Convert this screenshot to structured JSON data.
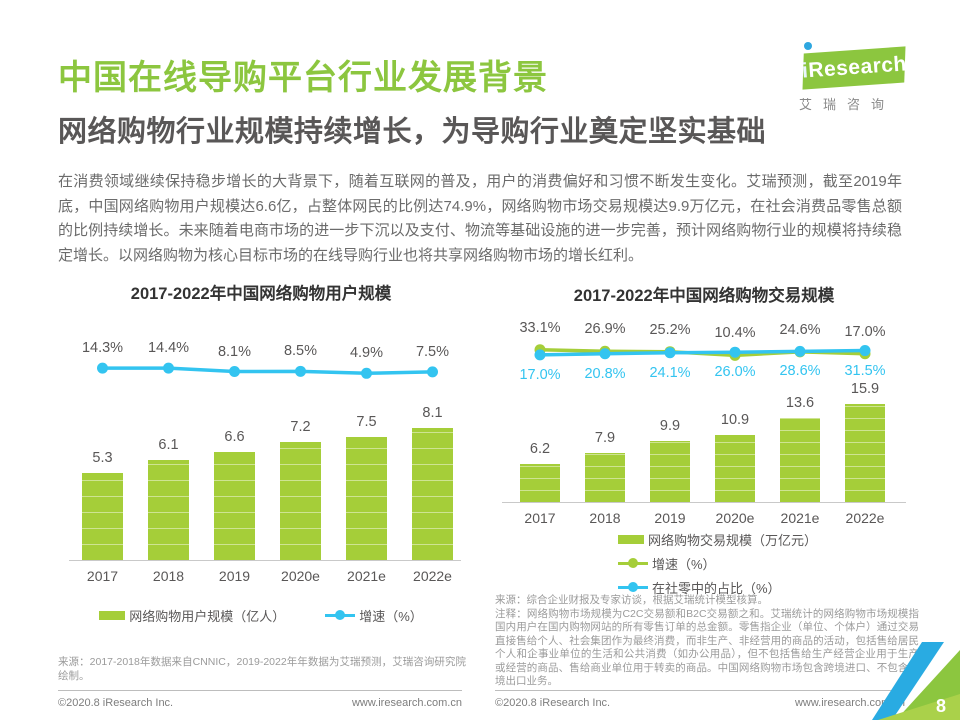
{
  "header": {
    "title": "中国在线导购平台行业发展背景",
    "subtitle": "网络购物行业规模持续增长，为导购行业奠定坚实基础",
    "logo_i": "i",
    "logo_brand": "Research",
    "logo_caption": "艾瑞咨询"
  },
  "intro": {
    "text": "在消费领域继续保持稳步增长的大背景下，随着互联网的普及，用户的消费偏好和习惯不断发生变化。艾瑞预测，截至2019年底，中国网络购物用户规模达6.6亿，占整体网民的比例达74.9%，网络购物市场交易规模达9.9万亿元，在社会消费品零售总额的比例持续增长。未来随着电商市场的进一步下沉以及支付、物流等基础设施的进一步完善，预计网络购物行业的规模将持续稳定增长。以网络购物为核心目标市场的在线导购行业也将共享网络购物市场的增长红利。"
  },
  "colors": {
    "title_green": "#8CC63F",
    "bar_green": "#A5CE39",
    "line_blue": "#33C4F0",
    "line_green": "#A5CE39",
    "label_gray": "#595757"
  },
  "chart_data": [
    {
      "type": "bar+line",
      "title": "2017-2022年中国网络购物用户规模",
      "categories": [
        "2017",
        "2018",
        "2019",
        "2020e",
        "2021e",
        "2022e"
      ],
      "series": [
        {
          "name": "网络购物用户规模（亿人）",
          "kind": "bar",
          "values": [
            5.3,
            6.1,
            6.6,
            7.2,
            7.5,
            8.1
          ],
          "labels": [
            "5.3",
            "6.1",
            "6.6",
            "7.2",
            "7.5",
            "8.1"
          ],
          "color": "#A5CE39"
        },
        {
          "name": "增速（%）",
          "kind": "line",
          "values": [
            14.3,
            14.4,
            8.1,
            8.5,
            4.9,
            7.5
          ],
          "labels": [
            "14.3%",
            "14.4%",
            "8.1%",
            "8.5%",
            "4.9%",
            "7.5%"
          ],
          "color": "#33C4F0"
        }
      ],
      "legend_position": "bottom-center",
      "grid": false,
      "source": "来源：2017-2018年数据来自CNNIC，2019-2022年年数据为艾瑞预测，艾瑞咨询研究院绘制。"
    },
    {
      "type": "bar+line",
      "title": "2017-2022年中国网络购物交易规模",
      "categories": [
        "2017",
        "2018",
        "2019",
        "2020e",
        "2021e",
        "2022e"
      ],
      "series": [
        {
          "name": "网络购物交易规模（万亿元）",
          "kind": "bar",
          "values": [
            6.2,
            7.9,
            9.9,
            10.9,
            13.6,
            15.9
          ],
          "labels": [
            "6.2",
            "7.9",
            "9.9",
            "10.9",
            "13.6",
            "15.9"
          ],
          "color": "#A5CE39"
        },
        {
          "name": "增速（%）",
          "kind": "line",
          "values": [
            33.1,
            26.9,
            25.2,
            10.4,
            24.6,
            17.0
          ],
          "labels": [
            "33.1%",
            "26.9%",
            "25.2%",
            "10.4%",
            "24.6%",
            "17.0%"
          ],
          "color": "#A5CE39"
        },
        {
          "name": "在社零中的占比（%）",
          "kind": "line",
          "values": [
            17.0,
            20.8,
            24.1,
            26.0,
            28.6,
            31.5
          ],
          "labels": [
            "17.0%",
            "20.8%",
            "24.1%",
            "26.0%",
            "28.6%",
            "31.5%"
          ],
          "color": "#33C4F0"
        }
      ],
      "legend_position": "bottom-left",
      "grid": false,
      "source": "来源：综合企业财报及专家访谈，根据艾瑞统计模型核算。",
      "note": "注释：网络购物市场规模为C2C交易额和B2C交易额之和。艾瑞统计的网络购物市场规模指国内用户在国内购物网站的所有零售订单的总金额。零售指企业（单位、个体户）通过交易直接售给个人、社会集团作为最终消费，而非生产、非经营用的商品的活动，包括售给居民个人和企事业单位的生活和公共消费（如办公用品），但不包括售给生产经营企业用于生产或经营的商品、售给商业单位用于转卖的商品。中国网络购物市场包含跨境进口、不包含跨境出口业务。"
    }
  ],
  "footer": {
    "copyright": "©2020.8 iResearch Inc.",
    "website": "www.iresearch.com.cn",
    "page_number": "8"
  }
}
